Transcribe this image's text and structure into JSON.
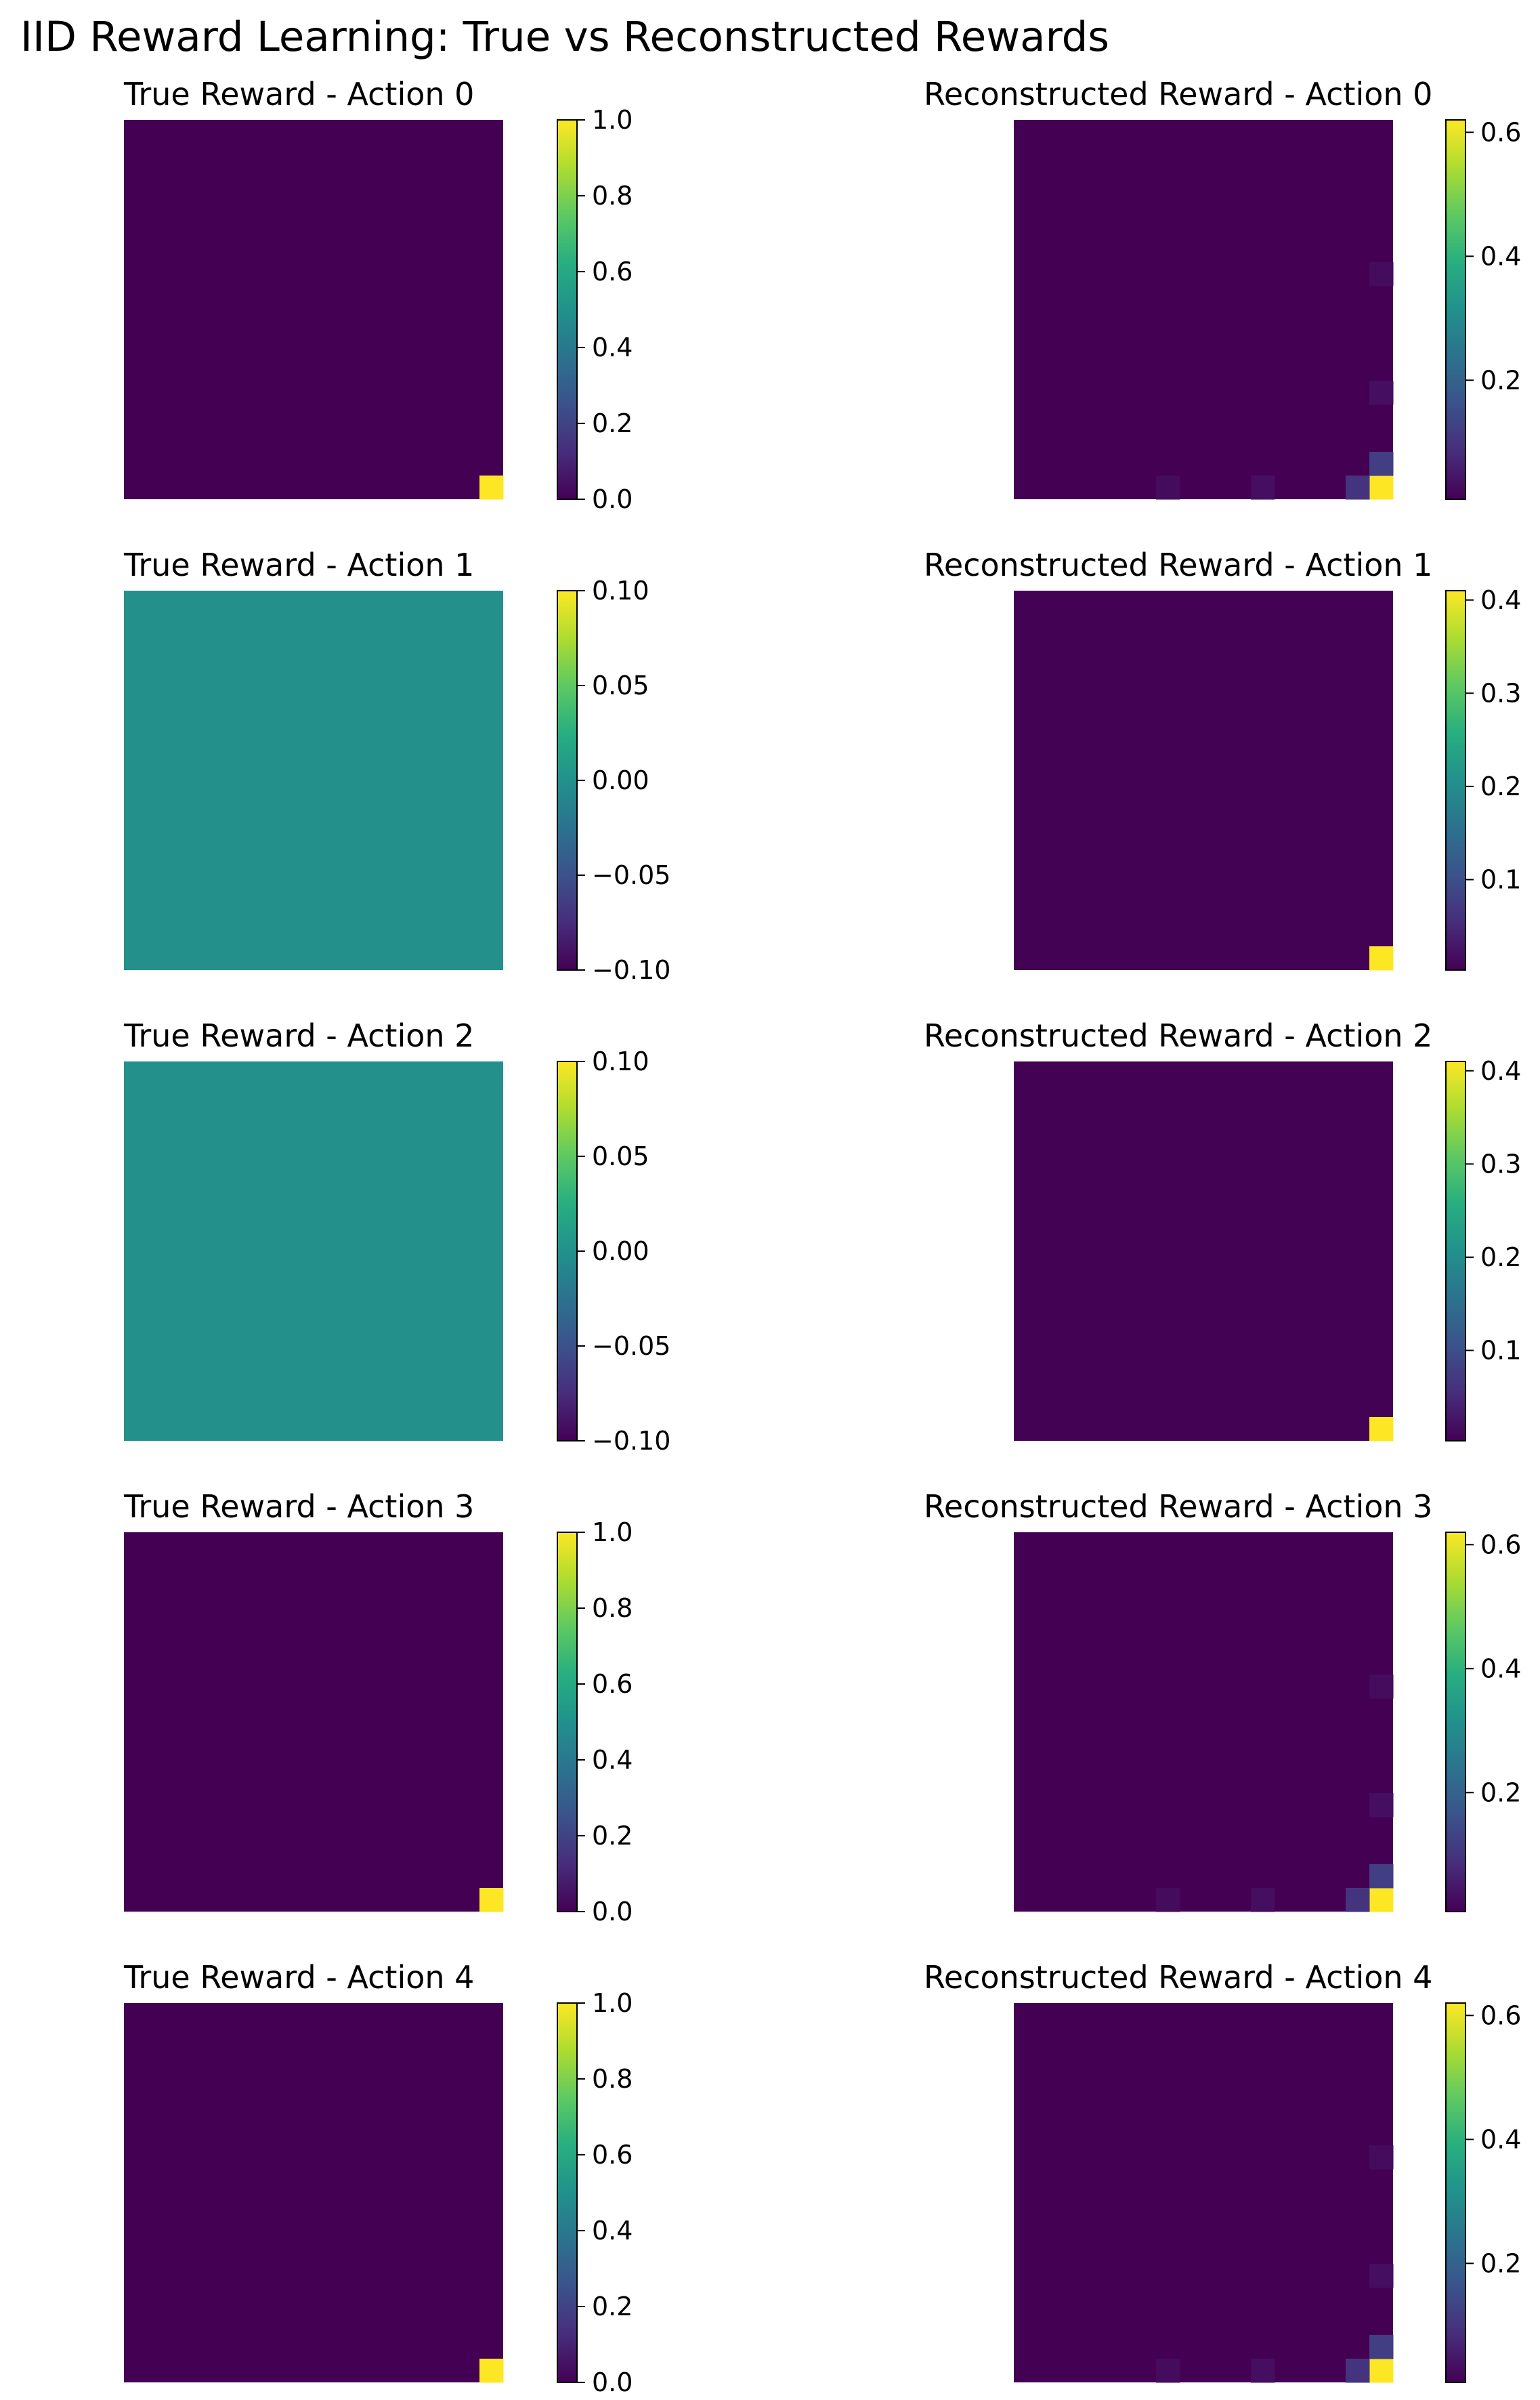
{
  "figure_title": "IID Reward Learning: True vs Reconstructed Rewards",
  "chart_data": [
    {
      "type": "heatmap",
      "title": "True Reward - Action 0",
      "grid_size": 16,
      "colormap": "viridis",
      "clim": [
        0,
        1
      ],
      "colorbar_ticks": [
        "0.0",
        "0.2",
        "0.4",
        "0.6",
        "0.8",
        "1.0"
      ],
      "base_value": 0.0,
      "cells": [
        {
          "row": 15,
          "col": 15,
          "value": 1.0
        }
      ]
    },
    {
      "type": "heatmap",
      "title": "Reconstructed Reward - Action 0",
      "grid_size": 16,
      "colormap": "viridis",
      "clim": [
        0.008,
        0.62
      ],
      "colorbar_ticks": [
        "0.2",
        "0.4",
        "0.6"
      ],
      "base_value": 0.008,
      "cells": [
        {
          "row": 15,
          "col": 15,
          "value": 0.62
        },
        {
          "row": 14,
          "col": 15,
          "value": 0.12
        },
        {
          "row": 15,
          "col": 14,
          "value": 0.1
        },
        {
          "row": 11,
          "col": 15,
          "value": 0.03
        },
        {
          "row": 6,
          "col": 15,
          "value": 0.025
        },
        {
          "row": 15,
          "col": 10,
          "value": 0.03
        },
        {
          "row": 15,
          "col": 6,
          "value": 0.025
        }
      ]
    },
    {
      "type": "heatmap",
      "title": "True Reward - Action 1",
      "grid_size": 16,
      "colormap": "viridis",
      "clim": [
        -0.1,
        0.1
      ],
      "colorbar_ticks": [
        "−0.10",
        "−0.05",
        "0.00",
        "0.05",
        "0.10"
      ],
      "base_value": 0.0,
      "cells": []
    },
    {
      "type": "heatmap",
      "title": "Reconstructed Reward - Action 1",
      "grid_size": 16,
      "colormap": "viridis",
      "clim": [
        0.003,
        0.41
      ],
      "colorbar_ticks": [
        "0.1",
        "0.2",
        "0.3",
        "0.4"
      ],
      "base_value": 0.004,
      "cells": [
        {
          "row": 15,
          "col": 15,
          "value": 0.41
        }
      ]
    },
    {
      "type": "heatmap",
      "title": "True Reward - Action 2",
      "grid_size": 16,
      "colormap": "viridis",
      "clim": [
        -0.1,
        0.1
      ],
      "colorbar_ticks": [
        "−0.10",
        "−0.05",
        "0.00",
        "0.05",
        "0.10"
      ],
      "base_value": 0.0,
      "cells": []
    },
    {
      "type": "heatmap",
      "title": "Reconstructed Reward - Action 2",
      "grid_size": 16,
      "colormap": "viridis",
      "clim": [
        0.003,
        0.41
      ],
      "colorbar_ticks": [
        "0.1",
        "0.2",
        "0.3",
        "0.4"
      ],
      "base_value": 0.004,
      "cells": [
        {
          "row": 15,
          "col": 15,
          "value": 0.41
        }
      ]
    },
    {
      "type": "heatmap",
      "title": "True Reward - Action 3",
      "grid_size": 16,
      "colormap": "viridis",
      "clim": [
        0,
        1
      ],
      "colorbar_ticks": [
        "0.0",
        "0.2",
        "0.4",
        "0.6",
        "0.8",
        "1.0"
      ],
      "base_value": 0.0,
      "cells": [
        {
          "row": 15,
          "col": 15,
          "value": 1.0
        }
      ]
    },
    {
      "type": "heatmap",
      "title": "Reconstructed Reward - Action 3",
      "grid_size": 16,
      "colormap": "viridis",
      "clim": [
        0.008,
        0.62
      ],
      "colorbar_ticks": [
        "0.2",
        "0.4",
        "0.6"
      ],
      "base_value": 0.008,
      "cells": [
        {
          "row": 15,
          "col": 15,
          "value": 0.62
        },
        {
          "row": 14,
          "col": 15,
          "value": 0.12
        },
        {
          "row": 15,
          "col": 14,
          "value": 0.1
        },
        {
          "row": 11,
          "col": 15,
          "value": 0.03
        },
        {
          "row": 6,
          "col": 15,
          "value": 0.025
        },
        {
          "row": 15,
          "col": 10,
          "value": 0.03
        },
        {
          "row": 15,
          "col": 6,
          "value": 0.025
        }
      ]
    },
    {
      "type": "heatmap",
      "title": "True Reward - Action 4",
      "grid_size": 16,
      "colormap": "viridis",
      "clim": [
        0,
        1
      ],
      "colorbar_ticks": [
        "0.0",
        "0.2",
        "0.4",
        "0.6",
        "0.8",
        "1.0"
      ],
      "base_value": 0.0,
      "cells": [
        {
          "row": 15,
          "col": 15,
          "value": 1.0
        }
      ]
    },
    {
      "type": "heatmap",
      "title": "Reconstructed Reward - Action 4",
      "grid_size": 16,
      "colormap": "viridis",
      "clim": [
        0.008,
        0.62
      ],
      "colorbar_ticks": [
        "0.2",
        "0.4",
        "0.6"
      ],
      "base_value": 0.008,
      "cells": [
        {
          "row": 15,
          "col": 15,
          "value": 0.62
        },
        {
          "row": 14,
          "col": 15,
          "value": 0.12
        },
        {
          "row": 15,
          "col": 14,
          "value": 0.1
        },
        {
          "row": 11,
          "col": 15,
          "value": 0.03
        },
        {
          "row": 6,
          "col": 15,
          "value": 0.025
        },
        {
          "row": 15,
          "col": 10,
          "value": 0.03
        },
        {
          "row": 15,
          "col": 6,
          "value": 0.025
        }
      ]
    }
  ]
}
